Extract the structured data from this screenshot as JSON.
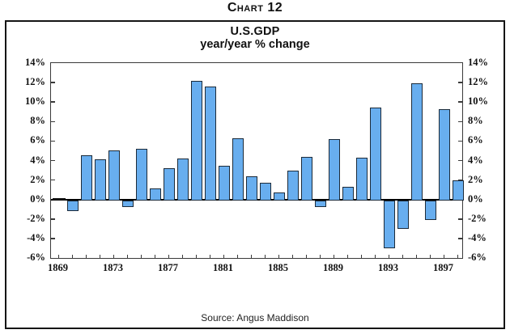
{
  "page": {
    "title": "Chart 12",
    "source": "Source: Angus Maddison"
  },
  "chart_data": {
    "type": "bar",
    "title": "U.S.GDP",
    "subtitle": "year/year % change",
    "x": [
      1869,
      1870,
      1871,
      1872,
      1873,
      1874,
      1875,
      1876,
      1877,
      1878,
      1879,
      1880,
      1881,
      1882,
      1883,
      1884,
      1885,
      1886,
      1887,
      1888,
      1889,
      1890,
      1891,
      1892,
      1893,
      1894,
      1895,
      1896,
      1897,
      1898
    ],
    "values": [
      -0.1,
      -1.1,
      4.5,
      4.1,
      5.0,
      -0.7,
      5.2,
      1.1,
      3.2,
      4.2,
      12.2,
      11.6,
      3.5,
      6.3,
      2.4,
      1.7,
      0.7,
      3.0,
      4.4,
      -0.7,
      6.2,
      1.3,
      4.3,
      9.4,
      -4.9,
      -2.9,
      11.9,
      -2.0,
      9.3,
      2.0
    ],
    "ylim": [
      -6,
      14
    ],
    "ytick_values": [
      14,
      12,
      10,
      8,
      6,
      4,
      2,
      0,
      -2,
      -4,
      -6
    ],
    "ytick_labels": [
      "14%",
      "12%",
      "10%",
      "8%",
      "6%",
      "4%",
      "2%",
      "0%",
      "-2%",
      "-4%",
      "-6%"
    ],
    "xtick_labels": [
      "1869",
      "1873",
      "1877",
      "1881",
      "1885",
      "1889",
      "1893",
      "1897"
    ],
    "grid": false,
    "legend_position": "none",
    "bar_color": "#68aeef",
    "bar_border": "#1c2b3a",
    "zero_line_color": "#000000",
    "frame_color": "#3a3a3a"
  }
}
